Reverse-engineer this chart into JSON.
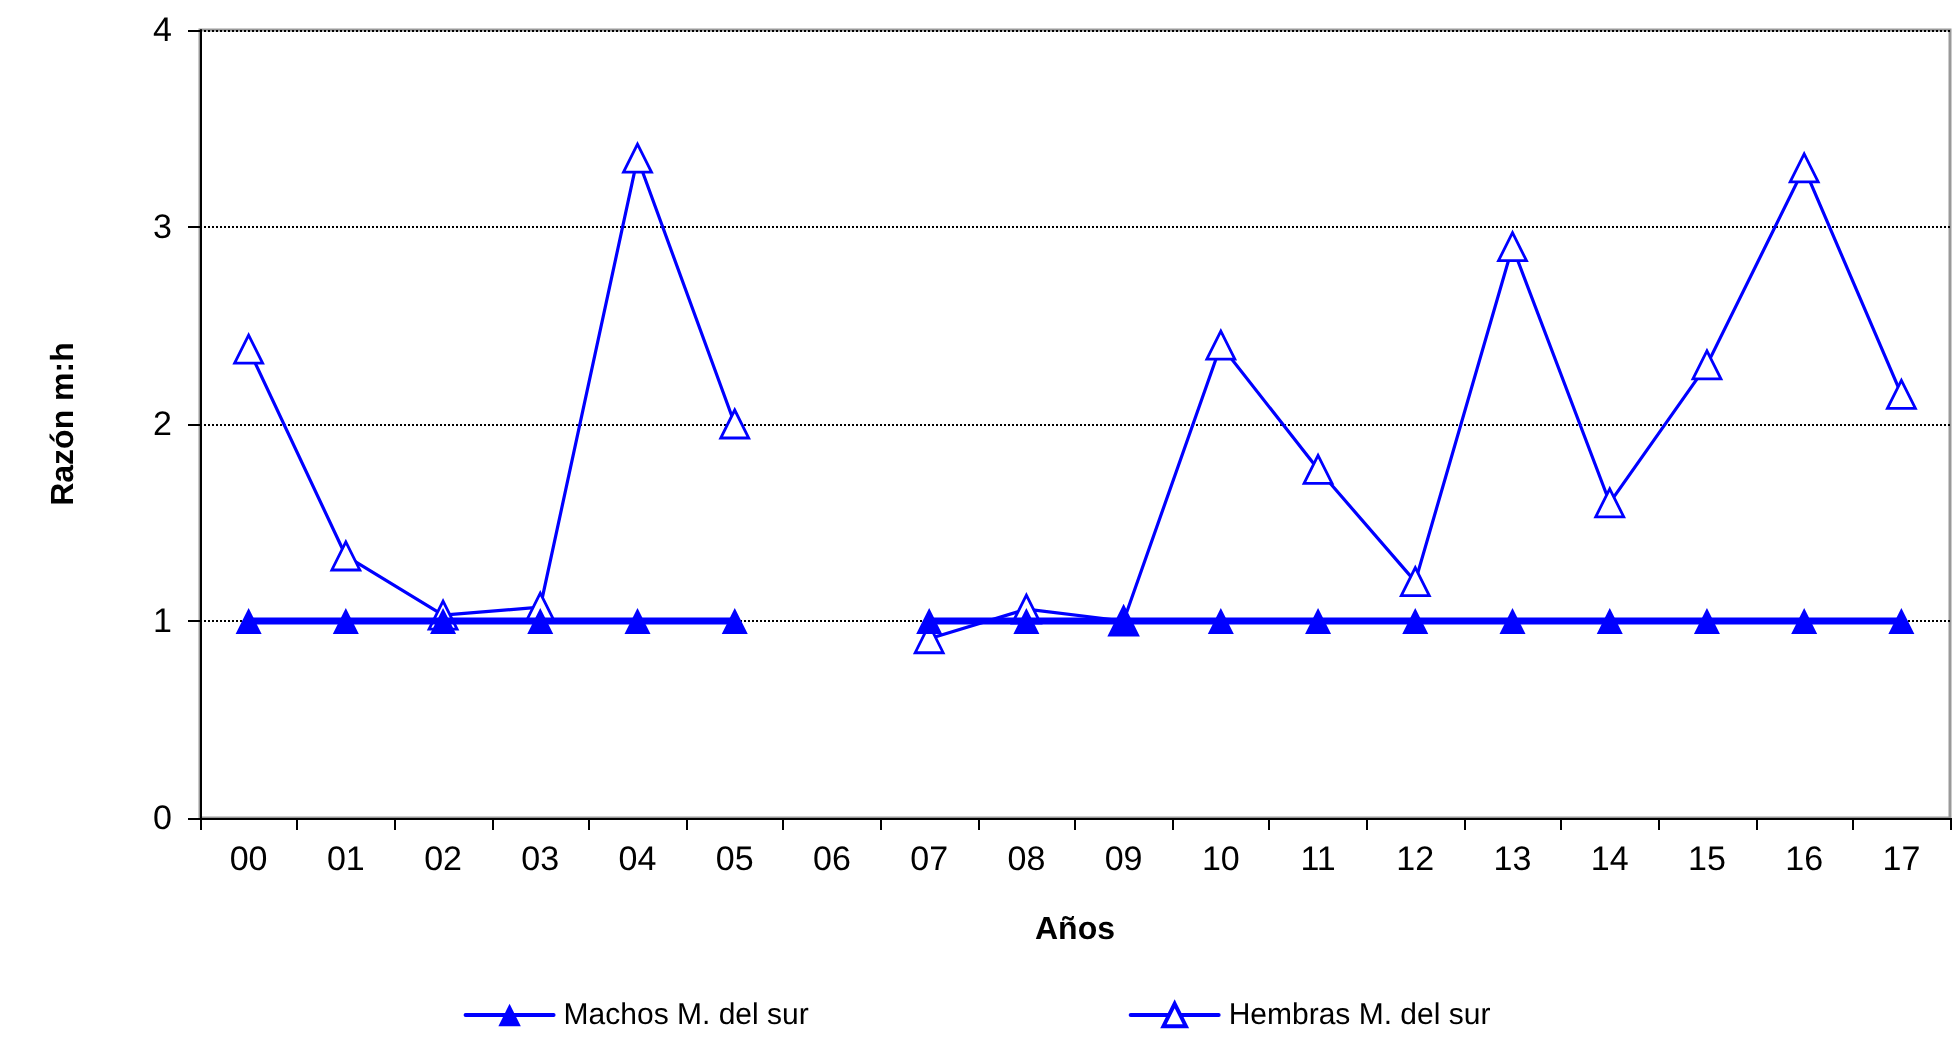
{
  "chart_data": {
    "type": "line",
    "xlabel": "Años",
    "ylabel": "Razón m:h",
    "categories": [
      "00",
      "01",
      "02",
      "03",
      "04",
      "05",
      "06",
      "07",
      "08",
      "09",
      "10",
      "11",
      "12",
      "13",
      "14",
      "15",
      "16",
      "17"
    ],
    "series": [
      {
        "name": "Machos M. del sur",
        "color": "#0000ff",
        "values": [
          1,
          1,
          1,
          1,
          1,
          1,
          null,
          1,
          1,
          1,
          1,
          1,
          1,
          1,
          1,
          1,
          1,
          1
        ]
      },
      {
        "name": "Hembras M. del sur",
        "color": "#0000ff",
        "values": [
          2.38,
          1.33,
          1.03,
          1.07,
          3.35,
          2.0,
          null,
          0.91,
          1.06,
          1.0,
          2.4,
          1.77,
          1.2,
          2.9,
          1.6,
          2.3,
          3.3,
          2.15
        ]
      }
    ],
    "ylim": [
      0,
      4
    ],
    "yticks": [
      0,
      1,
      2,
      3,
      4
    ],
    "grid": "y",
    "legend": "bottom",
    "marker": "triangle",
    "line_style": "solid"
  }
}
